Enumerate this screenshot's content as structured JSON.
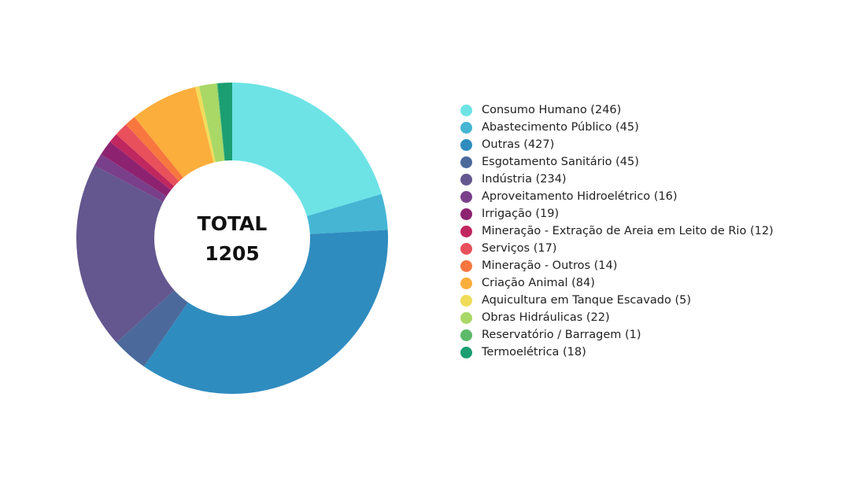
{
  "chart_data": {
    "type": "pie",
    "variant": "donut",
    "center_label": [
      "TOTAL",
      "1205"
    ],
    "legend_position": "right",
    "categories": [
      "Consumo Humano",
      "Abastecimento Público",
      "Outras",
      "Esgotamento Sanitário",
      "Indústria",
      "Aproveitamento Hidroelétrico",
      "Irrigação",
      "Mineração - Extração de Areia em Leito de Rio",
      "Serviços",
      "Mineração - Outros",
      "Criação Animal",
      "Aquicultura em Tanque Escavado",
      "Obras Hidráulicas",
      "Reservatório / Barragem",
      "Termoelétrica"
    ],
    "values": [
      246,
      45,
      427,
      45,
      234,
      16,
      19,
      12,
      17,
      14,
      84,
      5,
      22,
      1,
      18
    ],
    "legend_labels": [
      "Consumo Humano (246)",
      "Abastecimento Público (45)",
      "Outras (427)",
      "Esgotamento Sanitário (45)",
      "Indústria (234)",
      "Aproveitamento Hidroelétrico (16)",
      "Irrigação (19)",
      "Mineração - Extração de Areia em Leito de Rio (12)",
      "Serviços (17)",
      "Mineração - Outros (14)",
      "Criação Animal (84)",
      "Aquicultura em Tanque Escavado (5)",
      "Obras Hidráulicas (22)",
      "Reservatório / Barragem (1)",
      "Termoelétrica (18)"
    ],
    "colors": [
      "#6de3e6",
      "#45b5d3",
      "#2f8cbf",
      "#4b6a9b",
      "#64578f",
      "#7a3f8a",
      "#8d2370",
      "#c0275f",
      "#e8505b",
      "#f7773f",
      "#fbae3c",
      "#f0dc5a",
      "#a9d866",
      "#5cba6a",
      "#1a9e72"
    ]
  }
}
